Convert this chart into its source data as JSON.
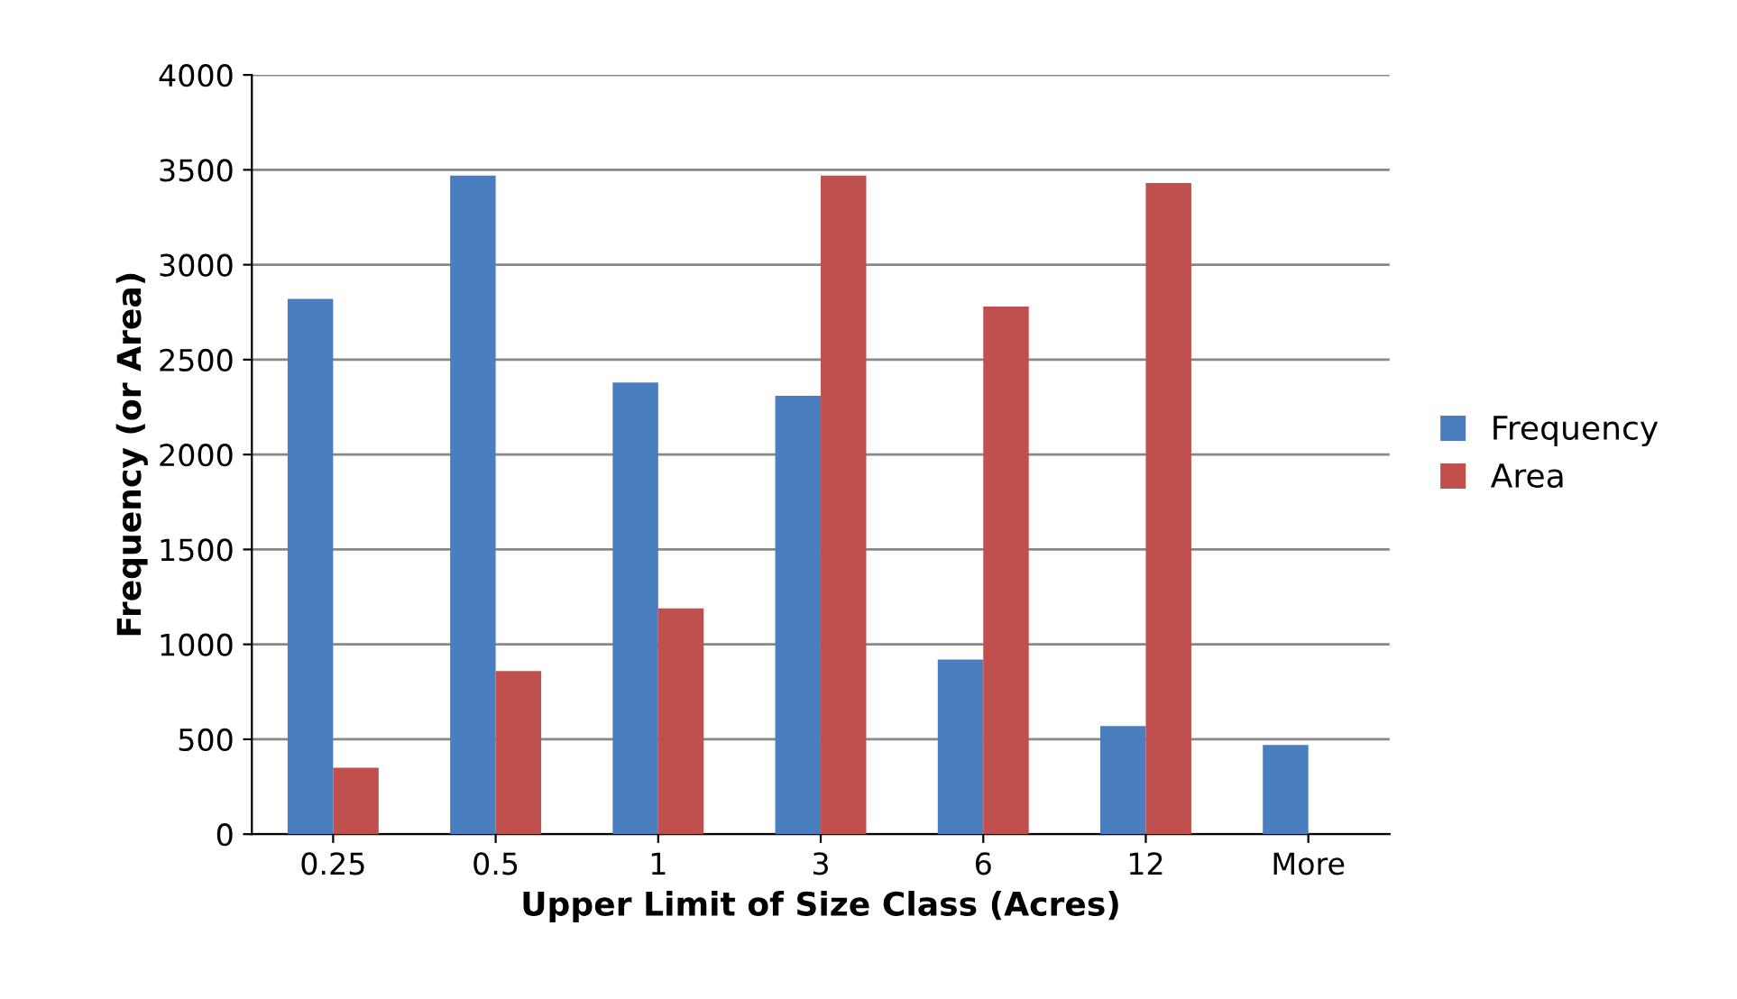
{
  "chart_data": {
    "type": "bar",
    "xlabel": "Upper Limit of Size Class (Acres)",
    "ylabel": "Frequency (or Area)",
    "categories": [
      "0.25",
      "0.5",
      "1",
      "3",
      "6",
      "12",
      "More"
    ],
    "series": [
      {
        "name": "Frequency",
        "color": "#4a7ebf",
        "values": [
          2820,
          3470,
          2380,
          2310,
          920,
          570,
          470
        ]
      },
      {
        "name": "Area",
        "color": "#c0504d",
        "values": [
          350,
          860,
          1190,
          3470,
          2780,
          3430,
          0
        ]
      }
    ],
    "ylim": [
      0,
      4000
    ],
    "yticks": [
      0,
      500,
      1000,
      1500,
      2000,
      2500,
      3000,
      3500,
      4000
    ],
    "grid": "y",
    "legend": "right"
  }
}
